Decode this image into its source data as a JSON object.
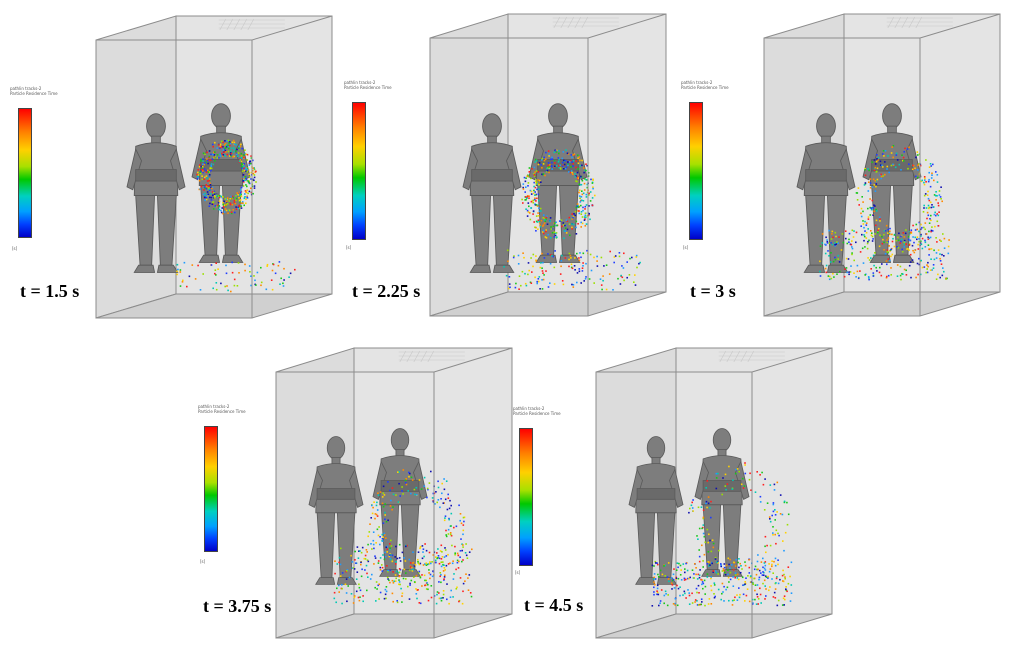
{
  "legend_title_line1": "pathlin tracks-2",
  "legend_title_line2": "Particle Residence Time",
  "unit": "[s]",
  "panels": [
    {
      "time_label": "t = 1.5 s"
    },
    {
      "time_label": "t = 2.25 s"
    },
    {
      "time_label": "t = 3 s"
    },
    {
      "time_label": "t = 3.75 s"
    },
    {
      "time_label": "t = 4.5 s"
    }
  ],
  "colors": {
    "room_edge": "#8c8c8c",
    "room_wall": "#e4e4e4",
    "floor": "#d0d0d0",
    "mannequin": "#7d7d7d"
  }
}
